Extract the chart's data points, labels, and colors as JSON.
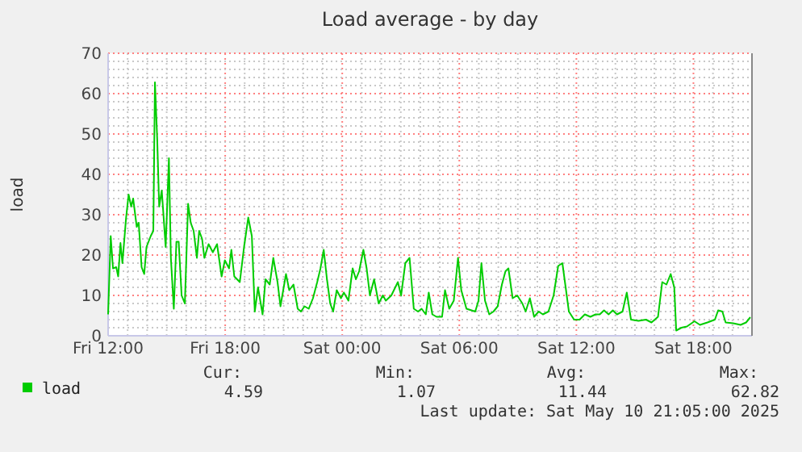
{
  "chart_data": {
    "type": "line",
    "title": "Load average - by day",
    "ylabel": "load",
    "xlim": [
      "2025-05-09T12:00",
      "2025-05-10T21:00"
    ],
    "xticks": [
      {
        "value": "2025-05-09T12:00",
        "label": "Fri 12:00"
      },
      {
        "value": "2025-05-09T13:00",
        "label": null
      },
      {
        "value": "2025-05-09T14:00",
        "label": null
      },
      {
        "value": "2025-05-09T15:00",
        "label": null
      },
      {
        "value": "2025-05-09T16:00",
        "label": null
      },
      {
        "value": "2025-05-09T17:00",
        "label": null
      },
      {
        "value": "2025-05-09T18:00",
        "label": "Fri 18:00"
      },
      {
        "value": "2025-05-09T19:00",
        "label": null
      },
      {
        "value": "2025-05-09T20:00",
        "label": null
      },
      {
        "value": "2025-05-09T21:00",
        "label": null
      },
      {
        "value": "2025-05-09T22:00",
        "label": null
      },
      {
        "value": "2025-05-09T23:00",
        "label": null
      },
      {
        "value": "2025-05-10T00:00",
        "label": "Sat 00:00"
      },
      {
        "value": "2025-05-10T01:00",
        "label": null
      },
      {
        "value": "2025-05-10T02:00",
        "label": null
      },
      {
        "value": "2025-05-10T03:00",
        "label": null
      },
      {
        "value": "2025-05-10T04:00",
        "label": null
      },
      {
        "value": "2025-05-10T05:00",
        "label": null
      },
      {
        "value": "2025-05-10T06:00",
        "label": "Sat 06:00"
      },
      {
        "value": "2025-05-10T07:00",
        "label": null
      },
      {
        "value": "2025-05-10T08:00",
        "label": null
      },
      {
        "value": "2025-05-10T09:00",
        "label": null
      },
      {
        "value": "2025-05-10T10:00",
        "label": null
      },
      {
        "value": "2025-05-10T11:00",
        "label": null
      },
      {
        "value": "2025-05-10T12:00",
        "label": "Sat 12:00"
      },
      {
        "value": "2025-05-10T13:00",
        "label": null
      },
      {
        "value": "2025-05-10T14:00",
        "label": null
      },
      {
        "value": "2025-05-10T15:00",
        "label": null
      },
      {
        "value": "2025-05-10T16:00",
        "label": null
      },
      {
        "value": "2025-05-10T17:00",
        "label": null
      },
      {
        "value": "2025-05-10T18:00",
        "label": "Sat 18:00"
      },
      {
        "value": "2025-05-10T19:00",
        "label": null
      },
      {
        "value": "2025-05-10T20:00",
        "label": null
      }
    ],
    "ylim": [
      0,
      70
    ],
    "yticks": [
      0,
      {
        "value": 2,
        "label": null
      },
      {
        "value": 4,
        "label": null
      },
      {
        "value": 6,
        "label": null
      },
      {
        "value": 8,
        "label": null
      },
      10,
      {
        "value": 12,
        "label": null
      },
      {
        "value": 14,
        "label": null
      },
      {
        "value": 16,
        "label": null
      },
      {
        "value": 18,
        "label": null
      },
      20,
      {
        "value": 22,
        "label": null
      },
      {
        "value": 24,
        "label": null
      },
      {
        "value": 26,
        "label": null
      },
      {
        "value": 28,
        "label": null
      },
      30,
      {
        "value": 32,
        "label": null
      },
      {
        "value": 34,
        "label": null
      },
      {
        "value": 36,
        "label": null
      },
      {
        "value": 38,
        "label": null
      },
      40,
      {
        "value": 42,
        "label": null
      },
      {
        "value": 44,
        "label": null
      },
      {
        "value": 46,
        "label": null
      },
      {
        "value": 48,
        "label": null
      },
      50,
      {
        "value": 52,
        "label": null
      },
      {
        "value": 54,
        "label": null
      },
      {
        "value": 56,
        "label": null
      },
      {
        "value": 58,
        "label": null
      },
      60,
      {
        "value": 62,
        "label": null
      },
      {
        "value": 64,
        "label": null
      },
      {
        "value": 66,
        "label": null
      },
      {
        "value": 68,
        "label": null
      },
      70
    ],
    "grid": true,
    "legend": "bottom",
    "marker": "none",
    "line_style": "solid",
    "series": [
      {
        "name": "load",
        "color": "#00cc00",
        "x": [
          "2025-05-09T12:00",
          "2025-05-09T12:08",
          "2025-05-09T12:15",
          "2025-05-09T12:25",
          "2025-05-09T12:31",
          "2025-05-09T12:38",
          "2025-05-09T12:44",
          "2025-05-09T12:55",
          "2025-05-09T13:03",
          "2025-05-09T13:11",
          "2025-05-09T13:17",
          "2025-05-09T13:28",
          "2025-05-09T13:34",
          "2025-05-09T13:43",
          "2025-05-09T13:51",
          "2025-05-09T13:58",
          "2025-05-09T14:11",
          "2025-05-09T14:19",
          "2025-05-09T14:24",
          "2025-05-09T14:31",
          "2025-05-09T14:37",
          "2025-05-09T14:45",
          "2025-05-09T14:57",
          "2025-05-09T15:07",
          "2025-05-09T15:13",
          "2025-05-09T15:22",
          "2025-05-09T15:30",
          "2025-05-09T15:37",
          "2025-05-09T15:46",
          "2025-05-09T15:56",
          "2025-05-09T16:06",
          "2025-05-09T16:14",
          "2025-05-09T16:23",
          "2025-05-09T16:33",
          "2025-05-09T16:40",
          "2025-05-09T16:49",
          "2025-05-09T16:56",
          "2025-05-09T17:09",
          "2025-05-09T17:22",
          "2025-05-09T17:35",
          "2025-05-09T17:49",
          "2025-05-09T17:59",
          "2025-05-09T18:12",
          "2025-05-09T18:19",
          "2025-05-09T18:28",
          "2025-05-09T18:45",
          "2025-05-09T18:58",
          "2025-05-09T19:11",
          "2025-05-09T19:22",
          "2025-05-09T19:31",
          "2025-05-09T19:41",
          "2025-05-09T19:55",
          "2025-05-09T20:04",
          "2025-05-09T20:17",
          "2025-05-09T20:28",
          "2025-05-09T20:41",
          "2025-05-09T20:50",
          "2025-05-09T21:07",
          "2025-05-09T21:17",
          "2025-05-09T21:30",
          "2025-05-09T21:43",
          "2025-05-09T21:53",
          "2025-05-09T22:04",
          "2025-05-09T22:17",
          "2025-05-09T22:30",
          "2025-05-09T22:43",
          "2025-05-09T22:53",
          "2025-05-09T23:03",
          "2025-05-09T23:13",
          "2025-05-09T23:23",
          "2025-05-09T23:32",
          "2025-05-09T23:43",
          "2025-05-09T23:56",
          "2025-05-10T00:05",
          "2025-05-10T00:19",
          "2025-05-10T00:32",
          "2025-05-10T00:42",
          "2025-05-10T00:52",
          "2025-05-10T01:05",
          "2025-05-10T01:15",
          "2025-05-10T01:25",
          "2025-05-10T01:38",
          "2025-05-10T01:52",
          "2025-05-10T02:05",
          "2025-05-10T02:14",
          "2025-05-10T02:31",
          "2025-05-10T02:51",
          "2025-05-10T03:01",
          "2025-05-10T03:14",
          "2025-05-10T03:27",
          "2025-05-10T03:40",
          "2025-05-10T03:53",
          "2025-05-10T04:04",
          "2025-05-10T04:17",
          "2025-05-10T04:26",
          "2025-05-10T04:37",
          "2025-05-10T04:50",
          "2025-05-10T05:07",
          "2025-05-10T05:16",
          "2025-05-10T05:29",
          "2025-05-10T05:43",
          "2025-05-10T05:56",
          "2025-05-10T06:06",
          "2025-05-10T06:22",
          "2025-05-10T06:49",
          "2025-05-10T06:59",
          "2025-05-10T07:08",
          "2025-05-10T07:19",
          "2025-05-10T07:32",
          "2025-05-10T07:45",
          "2025-05-10T07:58",
          "2025-05-10T08:11",
          "2025-05-10T08:22",
          "2025-05-10T08:31",
          "2025-05-10T08:44",
          "2025-05-10T08:58",
          "2025-05-10T09:14",
          "2025-05-10T09:24",
          "2025-05-10T09:37",
          "2025-05-10T09:50",
          "2025-05-10T10:04",
          "2025-05-10T10:17",
          "2025-05-10T10:34",
          "2025-05-10T10:50",
          "2025-05-10T11:04",
          "2025-05-10T11:17",
          "2025-05-10T11:37",
          "2025-05-10T11:53",
          "2025-05-10T12:10",
          "2025-05-10T12:26",
          "2025-05-10T12:43",
          "2025-05-10T12:59",
          "2025-05-10T13:12",
          "2025-05-10T13:25",
          "2025-05-10T13:39",
          "2025-05-10T13:52",
          "2025-05-10T14:05",
          "2025-05-10T14:22",
          "2025-05-10T14:35",
          "2025-05-10T14:48",
          "2025-05-10T15:11",
          "2025-05-10T15:34",
          "2025-05-10T15:51",
          "2025-05-10T16:11",
          "2025-05-10T16:24",
          "2025-05-10T16:37",
          "2025-05-10T16:50",
          "2025-05-10T17:01",
          "2025-05-10T17:07",
          "2025-05-10T17:23",
          "2025-05-10T17:40",
          "2025-05-10T18:03",
          "2025-05-10T18:20",
          "2025-05-10T18:43",
          "2025-05-10T19:06",
          "2025-05-10T19:16",
          "2025-05-10T19:29",
          "2025-05-10T19:39",
          "2025-05-10T20:02",
          "2025-05-10T20:25",
          "2025-05-10T20:42",
          "2025-05-10T20:55"
        ],
        "values": [
          5.3,
          24.7,
          16.7,
          17,
          14.7,
          23,
          18,
          29,
          35,
          32,
          34,
          27,
          28,
          17,
          15.3,
          22,
          24.7,
          26,
          62.8,
          48.7,
          32,
          36,
          22,
          44,
          19.3,
          6.7,
          23.3,
          23.3,
          10,
          8,
          32.7,
          28,
          26,
          19.3,
          26,
          24,
          19.3,
          22.7,
          20.7,
          22.7,
          14.7,
          18.7,
          16.7,
          21.3,
          14.7,
          13.3,
          22,
          29.3,
          24.7,
          6,
          12,
          5.3,
          14,
          12.7,
          19.3,
          13.3,
          7.3,
          15.3,
          11.3,
          12.7,
          6.7,
          6,
          7.3,
          6.7,
          9.3,
          13.3,
          16.7,
          21.3,
          14,
          8,
          6,
          11.3,
          9.3,
          10.7,
          8.7,
          16.7,
          14,
          16,
          21.3,
          16.7,
          10,
          14,
          8,
          10,
          8.7,
          10,
          13.3,
          10,
          18,
          19.3,
          6.7,
          6,
          6.7,
          5.3,
          10.7,
          5.3,
          4.7,
          4.7,
          11.3,
          6.7,
          8.7,
          19.3,
          11.3,
          6.7,
          6,
          8.7,
          18,
          8.7,
          5.3,
          6,
          7.3,
          12.7,
          16,
          16.7,
          9.3,
          10,
          8,
          6,
          9.3,
          4.7,
          6,
          5.3,
          6,
          10,
          17.3,
          18,
          6,
          4,
          4,
          5.3,
          4.7,
          5.3,
          5.3,
          6.3,
          5.3,
          6.3,
          5.3,
          6,
          10.7,
          4,
          3.7,
          4,
          3.3,
          4.7,
          13.3,
          12.7,
          15.3,
          12,
          1.3,
          2,
          2.3,
          3.6,
          2.7,
          3.3,
          4,
          6.3,
          6,
          3.3,
          3.1,
          2.7,
          3.3,
          4.6
        ]
      }
    ],
    "annotations": [
      "Cur:",
      "Min:",
      "Avg:",
      "Max:",
      "4.59",
      "1.07",
      "11.44",
      "62.82",
      "Last update: Sat May 10 21:05:00 2025"
    ]
  }
}
